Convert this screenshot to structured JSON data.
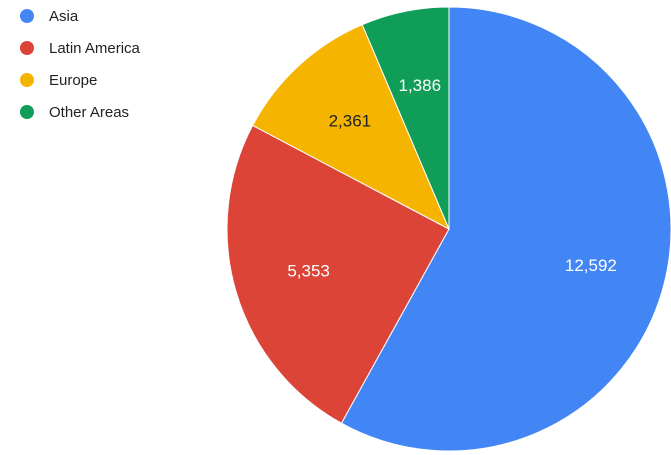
{
  "chart_data": {
    "type": "pie",
    "categories": [
      "Asia",
      "Latin America",
      "Europe",
      "Other Areas"
    ],
    "values": [
      12592,
      5353,
      2361,
      1386
    ],
    "value_labels": [
      "12,592",
      "5,353",
      "2,361",
      "1,386"
    ],
    "colors": [
      "#4285F4",
      "#DB4437",
      "#F4B400",
      "#0F9D58"
    ],
    "label_colors": [
      "#ffffff",
      "#ffffff",
      "#222222",
      "#ffffff"
    ],
    "legend_position": "top-left",
    "start_angle_deg": 0,
    "direction": "clockwise"
  }
}
